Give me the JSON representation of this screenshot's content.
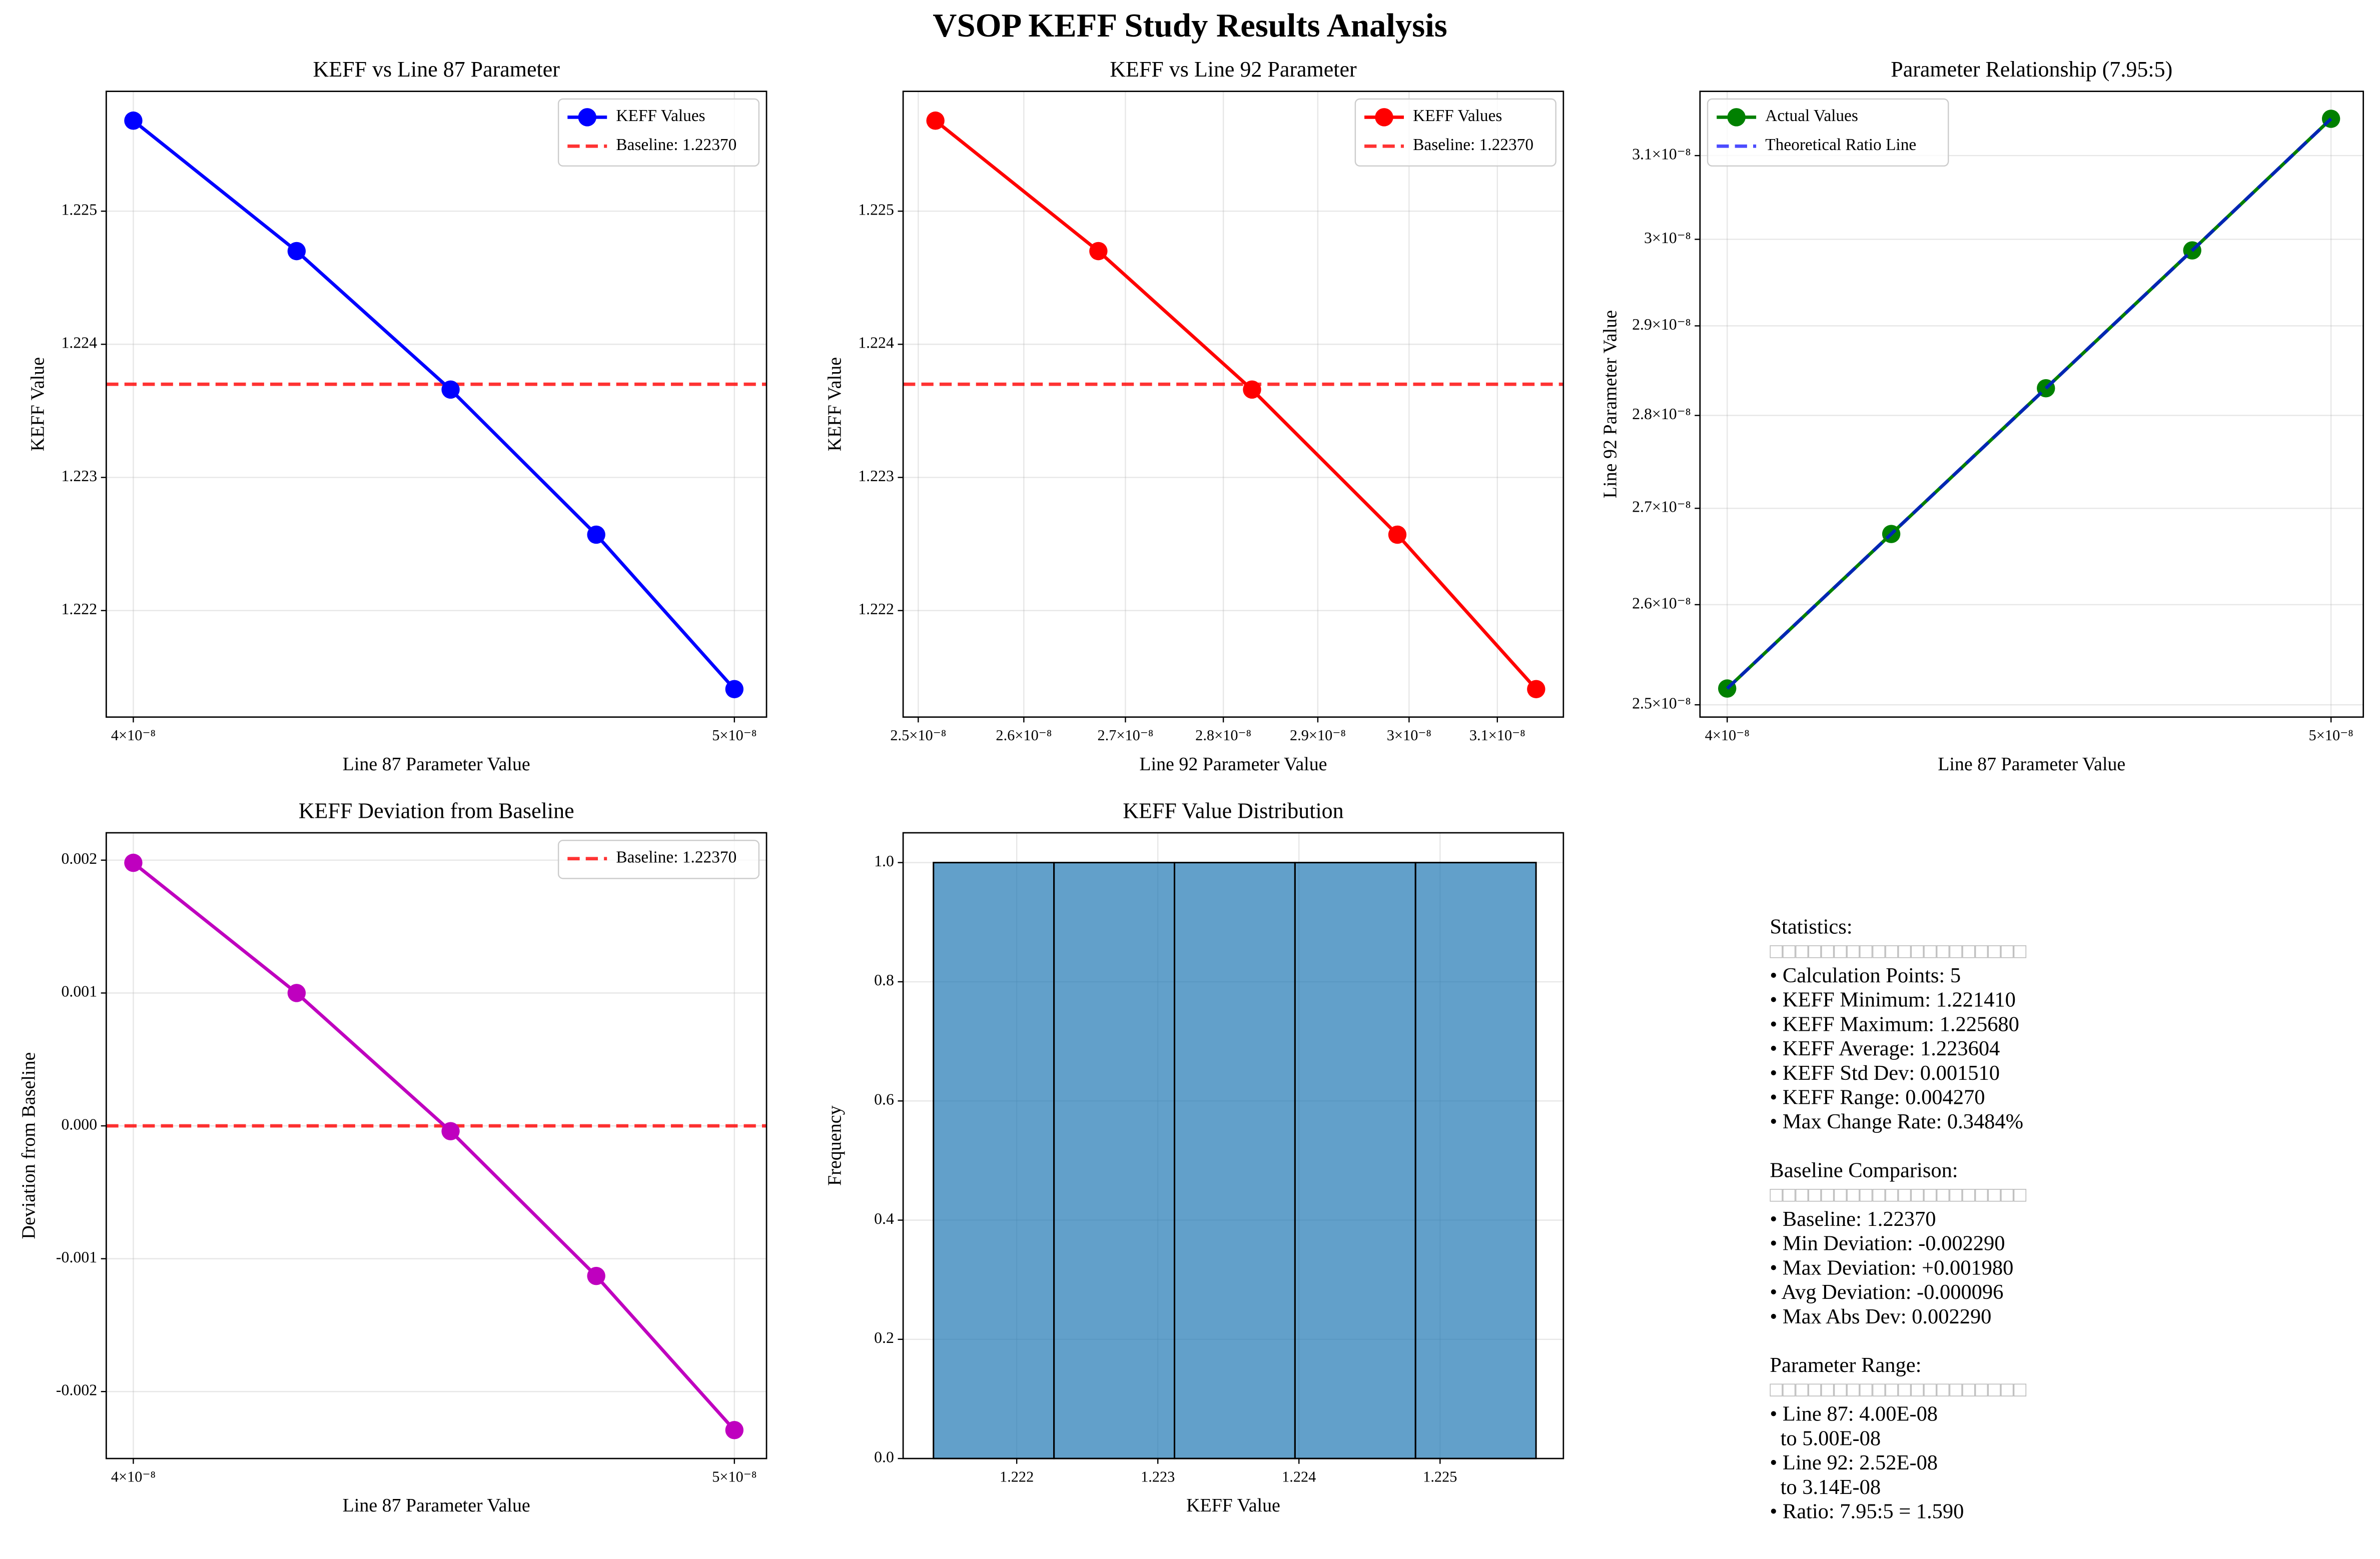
{
  "title": "VSOP KEFF Study Results Analysis",
  "chart_data": [
    {
      "type": "line",
      "title": "KEFF vs Line 87 Parameter",
      "xlabel": "Line 87 Parameter Value",
      "ylabel": "KEFF Value",
      "xscale": "log",
      "xlim": [
        3.96e-08,
        5.06e-08
      ],
      "xticks": [
        {
          "value": 4e-08,
          "label": "4×10⁻⁸"
        },
        {
          "value": 5e-08,
          "label": "5×10⁻⁸"
        }
      ],
      "ylim": [
        1.2212,
        1.2259
      ],
      "yticks": [
        1.222,
        1.223,
        1.224,
        1.225
      ],
      "grid": true,
      "legend": "upper right",
      "x": [
        4e-08,
        4.25e-08,
        4.5e-08,
        4.75e-08,
        5e-08
      ],
      "series": [
        {
          "name": "KEFF Values",
          "color": "#0000ff",
          "marker": "o",
          "values": [
            1.22568,
            1.2247,
            1.22366,
            1.22257,
            1.22141
          ]
        }
      ],
      "hlines": [
        {
          "name": "Baseline: 1.22370",
          "color": "#ff0000",
          "value": 1.2237
        }
      ]
    },
    {
      "type": "line",
      "title": "KEFF vs Line 92 Parameter",
      "xlabel": "Line 92 Parameter Value",
      "ylabel": "KEFF Value",
      "xscale": "log",
      "xlim": [
        2.486e-08,
        3.177e-08
      ],
      "xticks": [
        {
          "value": 2.5e-08,
          "label": "2.5×10⁻⁸"
        },
        {
          "value": 2.6e-08,
          "label": "2.6×10⁻⁸"
        },
        {
          "value": 2.7e-08,
          "label": "2.7×10⁻⁸"
        },
        {
          "value": 2.8e-08,
          "label": "2.8×10⁻⁸"
        },
        {
          "value": 2.9e-08,
          "label": "2.9×10⁻⁸"
        },
        {
          "value": 3e-08,
          "label": "3×10⁻⁸"
        },
        {
          "value": 3.1e-08,
          "label": "3.1×10⁻⁸"
        }
      ],
      "ylim": [
        1.2212,
        1.2259
      ],
      "yticks": [
        1.222,
        1.223,
        1.224,
        1.225
      ],
      "grid": true,
      "legend": "upper right",
      "x": [
        2.516e-08,
        2.673e-08,
        2.83e-08,
        2.987e-08,
        3.145e-08
      ],
      "series": [
        {
          "name": "KEFF Values",
          "color": "#ff0000",
          "marker": "o",
          "values": [
            1.22568,
            1.2247,
            1.22366,
            1.22257,
            1.22141
          ]
        }
      ],
      "hlines": [
        {
          "name": "Baseline: 1.22370",
          "color": "#ff0000",
          "value": 1.2237
        }
      ]
    },
    {
      "type": "line",
      "title": "Parameter Relationship (7.95:5)",
      "xlabel": "Line 87 Parameter Value",
      "ylabel": "Line 92 Parameter Value",
      "xscale": "log",
      "xlim": [
        3.96e-08,
        5.06e-08
      ],
      "xticks": [
        {
          "value": 4e-08,
          "label": "4×10⁻⁸"
        },
        {
          "value": 5e-08,
          "label": "5×10⁻⁸"
        }
      ],
      "yscale": "log",
      "ylim": [
        2.488e-08,
        3.179e-08
      ],
      "yticks": [
        {
          "value": 2.5e-08,
          "label": "2.5×10⁻⁸"
        },
        {
          "value": 2.6e-08,
          "label": "2.6×10⁻⁸"
        },
        {
          "value": 2.7e-08,
          "label": "2.7×10⁻⁸"
        },
        {
          "value": 2.8e-08,
          "label": "2.8×10⁻⁸"
        },
        {
          "value": 2.9e-08,
          "label": "2.9×10⁻⁸"
        },
        {
          "value": 3e-08,
          "label": "3×10⁻⁸"
        },
        {
          "value": 3.1e-08,
          "label": "3.1×10⁻⁸"
        }
      ],
      "grid": true,
      "legend": "upper left",
      "x": [
        4e-08,
        4.25e-08,
        4.5e-08,
        4.75e-08,
        5e-08
      ],
      "series": [
        {
          "name": "Actual Values",
          "color": "#008000",
          "marker": "o",
          "values": [
            2.516e-08,
            2.673e-08,
            2.83e-08,
            2.987e-08,
            3.145e-08
          ]
        },
        {
          "name": "Theoretical Ratio Line",
          "color": "#0000ff",
          "linestyle": "dashed",
          "opacity": 0.7,
          "values": [
            2.516e-08,
            2.673e-08,
            2.83e-08,
            2.987e-08,
            3.145e-08
          ]
        }
      ]
    },
    {
      "type": "line",
      "title": "KEFF Deviation from Baseline",
      "xlabel": "Line 87 Parameter Value",
      "ylabel": "Deviation from Baseline",
      "xscale": "log",
      "xlim": [
        3.96e-08,
        5.06e-08
      ],
      "xticks": [
        {
          "value": 4e-08,
          "label": "4×10⁻⁸"
        },
        {
          "value": 5e-08,
          "label": "5×10⁻⁸"
        }
      ],
      "ylim": [
        -0.002504,
        0.002206
      ],
      "yticks": [
        -0.002,
        -0.001,
        {
          "value": 0,
          "label": "0.000"
        },
        0.001,
        0.002
      ],
      "grid": true,
      "legend": "upper right",
      "x": [
        4e-08,
        4.25e-08,
        4.5e-08,
        4.75e-08,
        5e-08
      ],
      "series": [
        {
          "name": null,
          "color": "#bf00bf",
          "marker": "o",
          "values": [
            0.00198,
            0.001,
            -4e-05,
            -0.00113,
            -0.00229
          ]
        }
      ],
      "hlines": [
        {
          "name": "Baseline: 1.22370",
          "color": "#ff0000",
          "value": 0
        }
      ]
    },
    {
      "type": "histogram",
      "title": "KEFF Value Distribution",
      "xlabel": "KEFF Value",
      "ylabel": "Frequency",
      "xlim": [
        1.221195,
        1.225874
      ],
      "xticks": [
        1.222,
        1.223,
        1.224,
        1.225
      ],
      "ylim": [
        0,
        1.05
      ],
      "yticks": [
        {
          "value": 0,
          "label": "0.0"
        },
        0.2,
        0.4,
        0.6,
        0.8,
        {
          "value": 1,
          "label": "1.0"
        }
      ],
      "grid": true,
      "bins": [
        1.22141,
        1.222264,
        1.223118,
        1.223972,
        1.224826,
        1.22568
      ],
      "counts": [
        1,
        1,
        1,
        1,
        1
      ],
      "color": "#1f77b4",
      "opacity": 0.7,
      "edgecolor": "#000000"
    }
  ],
  "stats": [
    {
      "heading": "Statistics:",
      "rule": "□□□□□□□□□□□□□□□□□□□□",
      "items": [
        "• Calculation Points: 5",
        "• KEFF Minimum: 1.221410",
        "• KEFF Maximum: 1.225680",
        "• KEFF Average: 1.223604",
        "• KEFF Std Dev: 0.001510",
        "• KEFF Range: 0.004270",
        "• Max Change Rate: 0.3484%"
      ]
    },
    {
      "heading": "Baseline Comparison:",
      "rule": "□□□□□□□□□□□□□□□□□□□□",
      "items": [
        "• Baseline: 1.22370",
        "• Min Deviation: -0.002290",
        "• Max Deviation: +0.001980",
        "• Avg Deviation: -0.000096",
        "• Max Abs Dev: 0.002290"
      ]
    },
    {
      "heading": "Parameter Range:",
      "rule": "□□□□□□□□□□□□□□□□□□□□",
      "items": [
        "• Line 87: 4.00E-08",
        "  to 5.00E-08",
        "• Line 92: 2.52E-08",
        "  to 3.14E-08",
        "• Ratio: 7.95:5 = 1.590"
      ]
    }
  ]
}
